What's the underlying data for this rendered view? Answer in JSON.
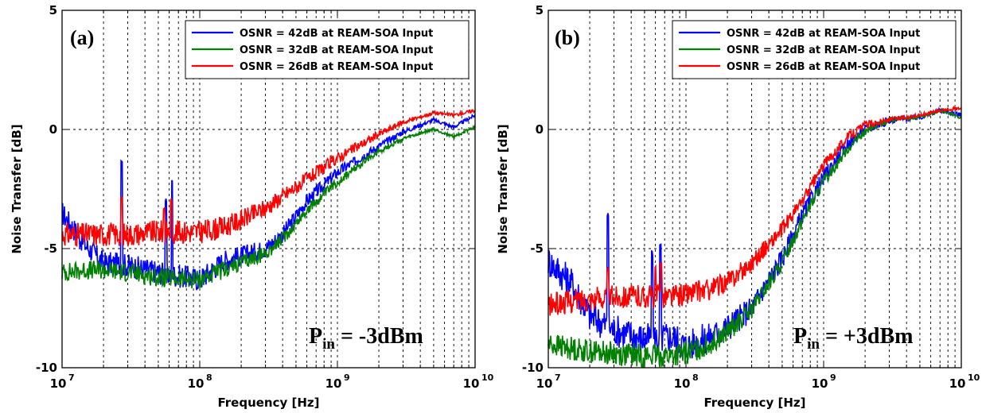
{
  "chart_data": [
    {
      "type": "line",
      "panel_label": "(a)",
      "xlabel": "Frequency [Hz]",
      "ylabel": "Noise Transfer  [dB]",
      "xscale": "log",
      "xlim": [
        10000000,
        10000000000
      ],
      "ylim": [
        -10,
        5
      ],
      "x_ticks": [
        {
          "base": "10",
          "exp": "7"
        },
        {
          "base": "10",
          "exp": "8"
        },
        {
          "base": "10",
          "exp": "9"
        },
        {
          "base": "10",
          "exp": "10"
        }
      ],
      "y_ticks": [
        "5",
        "0",
        "-5",
        "-10"
      ],
      "grid": true,
      "legend_position": "top-right",
      "annotation": {
        "main": "P",
        "sub": "in",
        "rest": " = -3dBm"
      },
      "series": [
        {
          "name": "OSNR = 42dB at REAM-SOA Input",
          "color": "#0000ff",
          "noise": 0.5,
          "x": [
            10000000,
            15000000,
            20000000,
            30000000,
            50000000,
            80000000,
            100000000,
            150000000,
            200000000,
            300000000,
            400000000,
            600000000,
            1000000000,
            2000000000,
            3000000000,
            5000000000,
            7000000000,
            10000000000
          ],
          "y": [
            -3.5,
            -4.9,
            -5.6,
            -5.7,
            -6.0,
            -6.2,
            -6.3,
            -5.5,
            -5.3,
            -5.0,
            -4.4,
            -3.0,
            -1.8,
            -0.7,
            -0.1,
            0.4,
            0.1,
            0.6
          ],
          "spikes": [
            {
              "x": 27000000,
              "y": -1.3
            },
            {
              "x": 57000000,
              "y": -3.0
            },
            {
              "x": 63000000,
              "y": -2.1
            }
          ]
        },
        {
          "name": "OSNR = 32dB at REAM-SOA Input",
          "color": "#008000",
          "noise": 0.4,
          "x": [
            10000000,
            15000000,
            20000000,
            30000000,
            50000000,
            80000000,
            100000000,
            150000000,
            200000000,
            300000000,
            400000000,
            600000000,
            1000000000,
            2000000000,
            3000000000,
            5000000000,
            7000000000,
            10000000000
          ],
          "y": [
            -6.0,
            -5.9,
            -5.9,
            -6.0,
            -6.2,
            -6.3,
            -6.3,
            -5.9,
            -5.6,
            -5.2,
            -4.6,
            -3.4,
            -2.2,
            -0.9,
            -0.4,
            0.0,
            -0.3,
            0.1
          ],
          "spikes": []
        },
        {
          "name": "OSNR = 26dB at REAM-SOA Input",
          "color": "#ff0000",
          "noise": 0.5,
          "x": [
            10000000,
            15000000,
            20000000,
            30000000,
            50000000,
            80000000,
            100000000,
            150000000,
            200000000,
            300000000,
            400000000,
            600000000,
            1000000000,
            2000000000,
            3000000000,
            5000000000,
            7000000000,
            10000000000
          ],
          "y": [
            -4.4,
            -4.4,
            -4.4,
            -4.4,
            -4.3,
            -4.3,
            -4.3,
            -4.1,
            -3.8,
            -3.3,
            -2.8,
            -2.1,
            -1.2,
            -0.2,
            0.3,
            0.7,
            0.6,
            0.8
          ],
          "spikes": [
            {
              "x": 27000000,
              "y": -2.9
            },
            {
              "x": 55000000,
              "y": -3.3
            },
            {
              "x": 62000000,
              "y": -3.0
            }
          ]
        }
      ]
    },
    {
      "type": "line",
      "panel_label": "(b)",
      "xlabel": "Frequency [Hz]",
      "ylabel": "Noise Transfer  [dB]",
      "xscale": "log",
      "xlim": [
        10000000,
        10000000000
      ],
      "ylim": [
        -10,
        5
      ],
      "x_ticks": [
        {
          "base": "10",
          "exp": "7"
        },
        {
          "base": "10",
          "exp": "8"
        },
        {
          "base": "10",
          "exp": "9"
        },
        {
          "base": "10",
          "exp": "10"
        }
      ],
      "y_ticks": [
        "5",
        "0",
        "-5",
        "-10"
      ],
      "grid": true,
      "legend_position": "top-right",
      "annotation": {
        "main": "P",
        "sub": "in",
        "rest": " = +3dBm"
      },
      "series": [
        {
          "name": "OSNR = 42dB at REAM-SOA Input",
          "color": "#0000ff",
          "noise": 0.7,
          "x": [
            10000000,
            15000000,
            20000000,
            30000000,
            50000000,
            80000000,
            100000000,
            150000000,
            200000000,
            300000000,
            500000000,
            700000000,
            1000000000,
            1500000000,
            2000000000,
            3000000000,
            5000000000,
            7000000000,
            10000000000
          ],
          "y": [
            -5.5,
            -6.5,
            -7.8,
            -8.4,
            -8.8,
            -8.7,
            -9.1,
            -8.7,
            -8.3,
            -7.5,
            -5.4,
            -3.6,
            -2.0,
            -0.6,
            0.0,
            0.4,
            0.5,
            0.8,
            0.6
          ],
          "spikes": [
            {
              "x": 27000000,
              "y": -3.6
            },
            {
              "x": 57000000,
              "y": -5.2
            },
            {
              "x": 65000000,
              "y": -4.9
            }
          ]
        },
        {
          "name": "OSNR = 32dB at REAM-SOA Input",
          "color": "#008000",
          "noise": 0.5,
          "x": [
            10000000,
            15000000,
            20000000,
            30000000,
            50000000,
            80000000,
            100000000,
            150000000,
            200000000,
            300000000,
            500000000,
            700000000,
            1000000000,
            1500000000,
            2000000000,
            3000000000,
            5000000000,
            7000000000,
            10000000000
          ],
          "y": [
            -9.0,
            -9.2,
            -9.3,
            -9.4,
            -9.5,
            -9.5,
            -9.4,
            -9.0,
            -8.5,
            -7.6,
            -5.6,
            -3.8,
            -2.2,
            -0.8,
            -0.1,
            0.4,
            0.5,
            0.8,
            0.5
          ],
          "spikes": []
        },
        {
          "name": "OSNR = 26dB at REAM-SOA Input",
          "color": "#ff0000",
          "noise": 0.5,
          "x": [
            10000000,
            15000000,
            20000000,
            30000000,
            50000000,
            80000000,
            100000000,
            150000000,
            200000000,
            300000000,
            500000000,
            700000000,
            1000000000,
            1500000000,
            2000000000,
            3000000000,
            5000000000,
            7000000000,
            10000000000
          ],
          "y": [
            -7.4,
            -7.2,
            -7.1,
            -7.0,
            -7.0,
            -7.0,
            -6.9,
            -6.7,
            -6.4,
            -5.6,
            -4.2,
            -3.0,
            -1.5,
            -0.3,
            0.2,
            0.4,
            0.6,
            0.8,
            0.9
          ],
          "spikes": [
            {
              "x": 27000000,
              "y": -5.9
            },
            {
              "x": 60000000,
              "y": -5.8
            },
            {
              "x": 66000000,
              "y": -5.6
            }
          ]
        }
      ]
    }
  ]
}
